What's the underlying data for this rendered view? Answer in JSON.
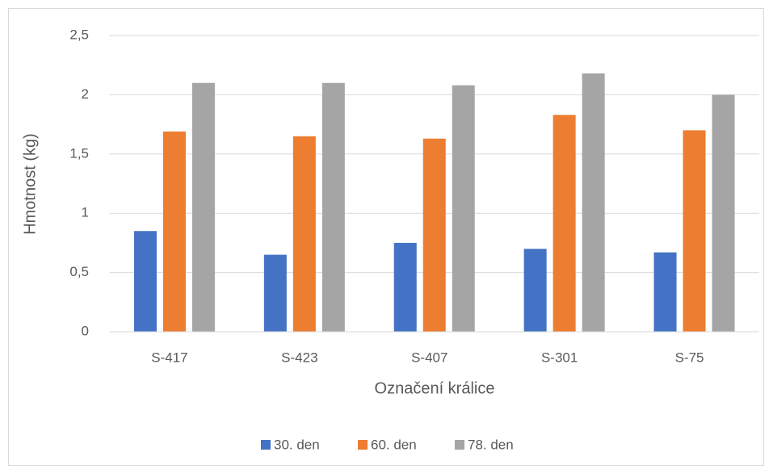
{
  "chart_data": {
    "type": "bar",
    "xlabel": "Označení králice",
    "ylabel": "Hmotnost (kg)",
    "categories": [
      "S-417",
      "S-423",
      "S-407",
      "S-301",
      "S-75"
    ],
    "series": [
      {
        "name": "30. den",
        "color": "#4472c4",
        "values": [
          0.85,
          0.65,
          0.75,
          0.7,
          0.67
        ]
      },
      {
        "name": "60. den",
        "color": "#ed7d31",
        "values": [
          1.69,
          1.65,
          1.63,
          1.83,
          1.7
        ]
      },
      {
        "name": "78. den",
        "color": "#a5a5a5",
        "values": [
          2.1,
          2.1,
          2.08,
          2.18,
          2.0
        ]
      }
    ],
    "ylim": [
      0,
      2.5
    ],
    "yticks": [
      0,
      {
        "value": 0.5,
        "label": "0,5"
      },
      1,
      {
        "value": 1.5,
        "label": "1,5"
      },
      2,
      {
        "value": 2.5,
        "label": "2,5"
      }
    ],
    "grid": true,
    "legend": "bottom"
  }
}
